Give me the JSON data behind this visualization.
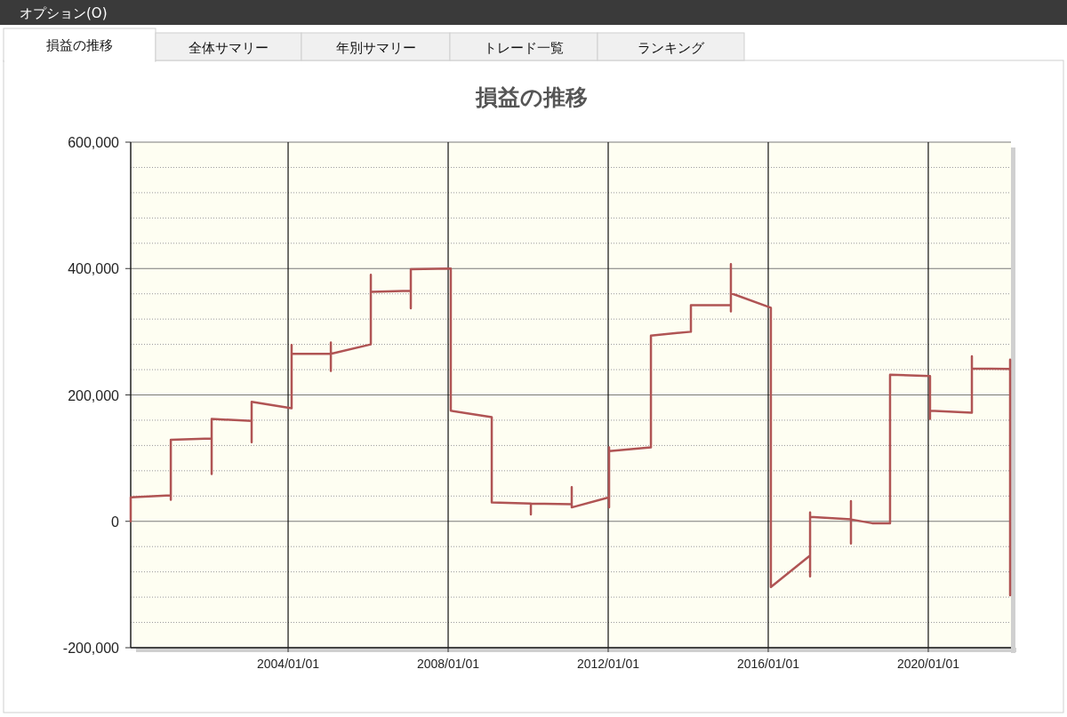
{
  "chart_data": {
    "type": "line",
    "title": "損益の推移",
    "annotations": [
      "オプション(O)",
      "損益の推移",
      "全体サマリー",
      "年別サマリー",
      "トレード一覧",
      "ランキング"
    ],
    "x": [
      "2000-01-25",
      "2000-01-25",
      "2001-01-25",
      "2001-01-25",
      "2001-01-25",
      "2002-02-02",
      "2002-02-02",
      "2002-02-02",
      "2003-02-02",
      "2003-02-02",
      "2003-02-02",
      "2004-02-02",
      "2004-02-02",
      "2004-02-02",
      "2005-01-25",
      "2005-01-25",
      "2005-01-25",
      "2005-01-25",
      "2006-01-25",
      "2006-01-25",
      "2006-01-25",
      "2007-01-25",
      "2007-01-25",
      "2007-01-25",
      "2008-01-25",
      "2008-01-25",
      "2009-02-02",
      "2009-02-02",
      "2010-01-25",
      "2010-01-25",
      "2010-01-25",
      "2011-02-02",
      "2011-02-02",
      "2011-02-02",
      "2012-01-09",
      "2012-01-09",
      "2012-01-09",
      "2012-01-09",
      "2013-01-25",
      "2013-01-25",
      "2014-01-25",
      "2014-01-25",
      "2015-01-25",
      "2015-01-25",
      "2015-01-25",
      "2015-01-25",
      "2016-01-25",
      "2016-01-25",
      "2017-01-17",
      "2017-01-17",
      "2017-01-17",
      "2017-01-17",
      "2018-01-25",
      "2018-01-25",
      "2018-01-25",
      "2018-01-25",
      "2018-08-07",
      "2019-01-17",
      "2019-01-17",
      "2020-01-17",
      "2020-01-17",
      "2020-01-17",
      "2021-02-02",
      "2021-02-02",
      "2021-02-02",
      "2022-01-17",
      "2022-01-17",
      "2022-01-17"
    ],
    "series": [
      {
        "color": "#b05454",
        "values": [
          0,
          38000,
          41000,
          34000,
          129000,
          131000,
          75000,
          162000,
          159000,
          125000,
          189000,
          179000,
          279000,
          265000,
          265000,
          238000,
          283000,
          265000,
          280000,
          390000,
          363000,
          365000,
          337000,
          399000,
          400000,
          175000,
          165000,
          30000,
          28000,
          11000,
          28000,
          27000,
          54000,
          22000,
          38000,
          22000,
          117000,
          111000,
          117000,
          294000,
          300000,
          342000,
          342000,
          332000,
          407000,
          361000,
          338000,
          -104000,
          -54000,
          -87000,
          14000,
          7000,
          3000,
          32000,
          -35000,
          3000,
          -3000,
          -3000,
          232000,
          230000,
          162000,
          175000,
          172000,
          261000,
          242000,
          241000,
          256000,
          -117000
        ]
      }
    ],
    "xlim": [
      "2000-01-25",
      "2022-01-25"
    ],
    "ylim": [
      -200000,
      600000
    ],
    "xticks": [
      {
        "value": "2004-01-01",
        "label": "2004/01/01"
      },
      {
        "value": "2008-01-01",
        "label": "2008/01/01"
      },
      {
        "value": "2012-01-01",
        "label": "2012/01/01"
      },
      {
        "value": "2016-01-01",
        "label": "2016/01/01"
      },
      {
        "value": "2020-01-01",
        "label": "2020/01/01"
      }
    ],
    "yticks": [
      {
        "value": -200000,
        "label": "-200,000"
      },
      {
        "value": -160000,
        "label": null
      },
      {
        "value": -120000,
        "label": null
      },
      {
        "value": -80000,
        "label": null
      },
      {
        "value": -40000,
        "label": null
      },
      {
        "value": 0,
        "label": "0"
      },
      {
        "value": 40000,
        "label": null
      },
      {
        "value": 80000,
        "label": null
      },
      {
        "value": 120000,
        "label": null
      },
      {
        "value": 160000,
        "label": null
      },
      {
        "value": 200000,
        "label": "200,000"
      },
      {
        "value": 240000,
        "label": null
      },
      {
        "value": 280000,
        "label": null
      },
      {
        "value": 320000,
        "label": null
      },
      {
        "value": 360000,
        "label": null
      },
      {
        "value": 400000,
        "label": "400,000"
      },
      {
        "value": 440000,
        "label": null
      },
      {
        "value": 480000,
        "label": null
      },
      {
        "value": 520000,
        "label": null
      },
      {
        "value": 560000,
        "label": null
      },
      {
        "value": 600000,
        "label": "600,000"
      }
    ],
    "grid": true,
    "line_style": "solid"
  }
}
